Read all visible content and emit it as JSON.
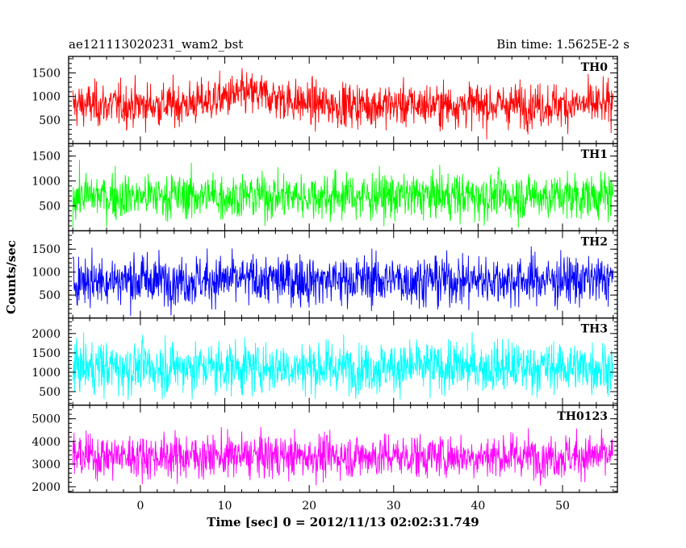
{
  "chart_data": {
    "type": "line",
    "title_left": "ae121113020231_wam2_bst",
    "title_right": "Bin time: 1.5625E-2 s",
    "xlabel": "Time [sec] 0 = 2012/11/13 02:02:31.749",
    "ylabel": "Counts/sec",
    "xlim": [
      -8.5,
      56.5
    ],
    "x_data_range": [
      -8,
      56
    ],
    "xticks": [
      0,
      10,
      20,
      30,
      40,
      50
    ],
    "xtick_labels": [
      "0",
      "10",
      "20",
      "30",
      "40",
      "50"
    ],
    "grid": false,
    "panels": [
      {
        "name": "TH0",
        "color": "#ff0000",
        "ylim": [
          0,
          1850
        ],
        "yticks": [
          500,
          1000,
          1500
        ],
        "ytick_labels": [
          "500",
          "1000",
          "1500"
        ],
        "mean": 820,
        "noise": 230,
        "bump": {
          "center": 13,
          "width": 5,
          "amount": 230
        },
        "min_floor": 60,
        "max_ceiling": 1850
      },
      {
        "name": "TH1",
        "color": "#00ff00",
        "ylim": [
          0,
          1750
        ],
        "yticks": [
          500,
          1000,
          1500
        ],
        "ytick_labels": [
          "500",
          "1000",
          "1500"
        ],
        "mean": 700,
        "noise": 230,
        "min_floor": 50,
        "max_ceiling": 1750
      },
      {
        "name": "TH2",
        "color": "#0000ff",
        "ylim": [
          0,
          1900
        ],
        "yticks": [
          500,
          1000,
          1500
        ],
        "ytick_labels": [
          "500",
          "1000",
          "1500"
        ],
        "mean": 830,
        "noise": 270,
        "min_floor": 40,
        "max_ceiling": 1900
      },
      {
        "name": "TH3",
        "color": "#00ffff",
        "ylim": [
          150,
          2400
        ],
        "yticks": [
          500,
          1000,
          1500,
          2000
        ],
        "ytick_labels": [
          "500",
          "1000",
          "1500",
          "2000"
        ],
        "mean": 1130,
        "noise": 330,
        "min_floor": 280,
        "max_ceiling": 2400
      },
      {
        "name": "TH0123",
        "color": "#ff00ff",
        "ylim": [
          1750,
          5600
        ],
        "yticks": [
          2000,
          3000,
          4000,
          5000
        ],
        "ytick_labels": [
          "2000",
          "3000",
          "4000",
          "5000"
        ],
        "mean": 3350,
        "noise": 480,
        "min_floor": 1800,
        "max_ceiling": 5600
      }
    ]
  }
}
